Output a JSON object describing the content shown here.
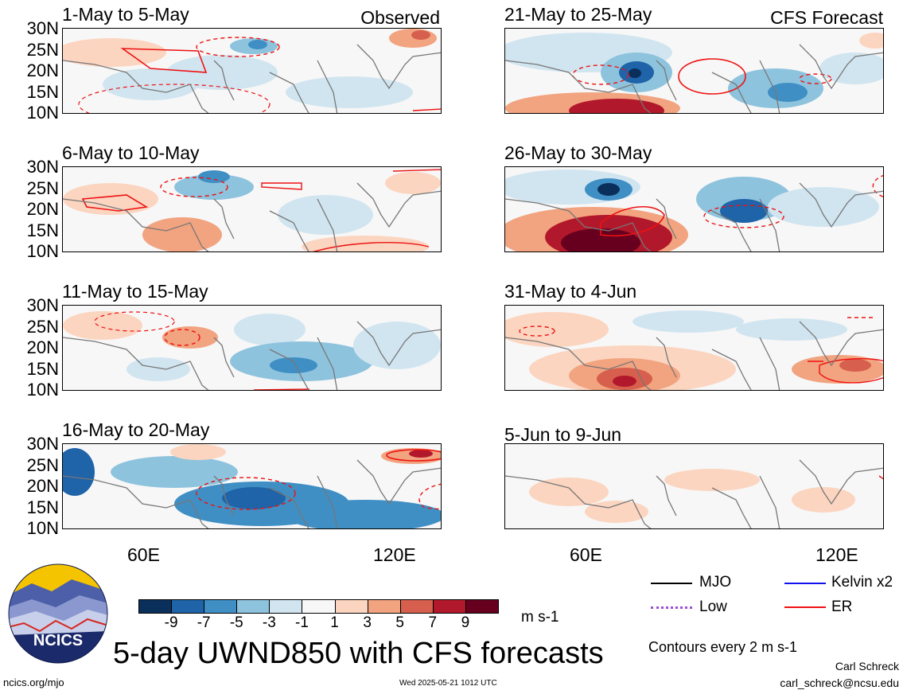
{
  "panels": [
    {
      "title": "1-May to 5-May",
      "tag": "Observed"
    },
    {
      "title": "6-May to 10-May",
      "tag": ""
    },
    {
      "title": "11-May to 15-May",
      "tag": ""
    },
    {
      "title": "16-May to 20-May",
      "tag": ""
    },
    {
      "title": "21-May to 25-May",
      "tag": "CFS Forecast"
    },
    {
      "title": "26-May to 30-May",
      "tag": ""
    },
    {
      "title": "31-May to 4-Jun",
      "tag": ""
    },
    {
      "title": "5-Jun to 9-Jun",
      "tag": ""
    }
  ],
  "lat_labels": [
    "30N",
    "25N",
    "20N",
    "15N",
    "10N"
  ],
  "lon_labels": [
    "60E",
    "120E"
  ],
  "colorbar": {
    "ticks": [
      "-9",
      "-7",
      "-5",
      "-3",
      "-1",
      "1",
      "3",
      "5",
      "7",
      "9"
    ],
    "colors": [
      "#0b2f5b",
      "#1f63a8",
      "#3f8fc4",
      "#8ec3de",
      "#d1e5f0",
      "#f7f7f7",
      "#fbd5c0",
      "#f2a37f",
      "#d6604d",
      "#b2182b",
      "#67001f"
    ],
    "units": "m s-1"
  },
  "legend": {
    "items": [
      {
        "label": "MJO",
        "color": "#000000"
      },
      {
        "label": "Kelvin x2",
        "color": "#1111ee"
      },
      {
        "label": "Low",
        "color": "#9b4fd6"
      },
      {
        "label": "ER",
        "color": "#ee1111"
      }
    ],
    "contours_note": "Contours every 2 m s-1"
  },
  "logo": {
    "text": "NCICS"
  },
  "main_title": "5-day UWND850 with CFS forecasts",
  "footer": {
    "url": "ncics.org/mjo",
    "timestamp": "Wed 2025-05-21 1012 UTC",
    "author": "Carl Schreck",
    "email": "carl_schreck@ncsu.edu"
  },
  "colors": {
    "contour_red": "#ee1111",
    "coast": "#777777"
  }
}
